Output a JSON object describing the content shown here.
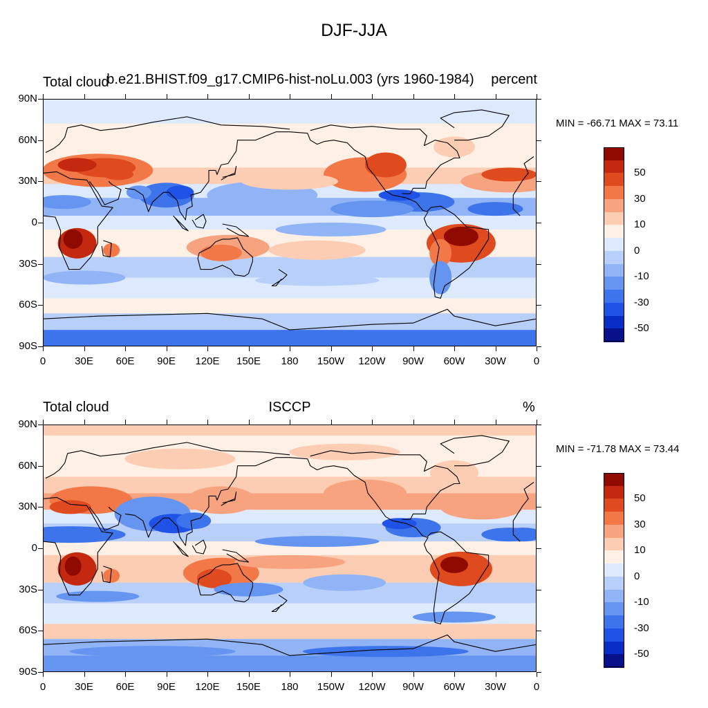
{
  "title": "DJF-JJA",
  "colors": {
    "scale": [
      "#08108a",
      "#0a2dc6",
      "#1f52e6",
      "#3d74eb",
      "#6595f0",
      "#90b4f5",
      "#b8cff9",
      "#dde9fc",
      "#fef0e4",
      "#fccdb2",
      "#f8a37f",
      "#f27848",
      "#e04a1f",
      "#c4280f",
      "#8f0a00"
    ]
  },
  "panels": [
    {
      "left_label": "Total cloud",
      "center_label": "b.e21.BHIST.f09_g17.CMIP6-hist-noLu.003 (yrs 1960-1984)",
      "right_label": "percent",
      "stats": "MIN = -66.71 MAX =  73.11"
    },
    {
      "left_label": "Total cloud",
      "center_label": "ISCCP",
      "right_label": "%",
      "stats": "MIN = -71.78 MAX =  73.44"
    }
  ],
  "axes": {
    "lat_ticks": [
      "90N",
      "60N",
      "30N",
      "0",
      "30S",
      "60S",
      "90S"
    ],
    "lon_ticks": [
      "0",
      "30E",
      "60E",
      "90E",
      "120E",
      "150E",
      "180",
      "150W",
      "120W",
      "90W",
      "60W",
      "30W",
      "0"
    ]
  },
  "colorbar": {
    "labels": [
      "50",
      "30",
      "10",
      "0",
      "-10",
      "-30",
      "-50"
    ]
  },
  "chart_data": [
    {
      "type": "heatmap",
      "title": "DJF-JJA",
      "subtitle": "b.e21.BHIST.f09_g17.CMIP6-hist-noLu.003 (yrs 1960-1984)",
      "variable": "Total cloud",
      "units": "percent",
      "min": -66.71,
      "max": 73.11,
      "xlim": [
        0,
        360
      ],
      "ylim": [
        -90,
        90
      ]
    },
    {
      "type": "heatmap",
      "title": "DJF-JJA",
      "subtitle": "ISCCP",
      "variable": "Total cloud",
      "units": "%",
      "min": -71.78,
      "max": 73.44,
      "xlim": [
        0,
        360
      ],
      "ylim": [
        -90,
        90
      ]
    }
  ]
}
